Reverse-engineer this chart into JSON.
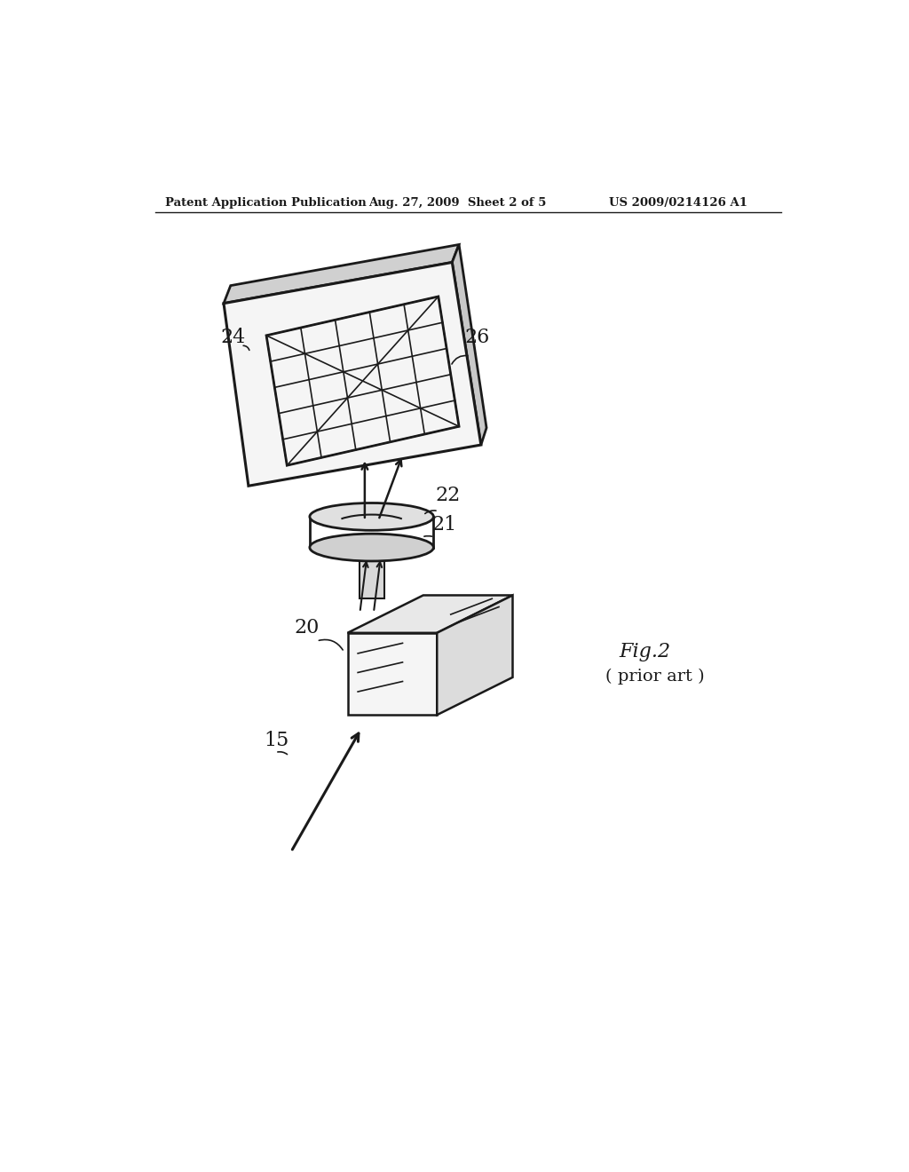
{
  "header_left": "Patent Application Publication",
  "header_mid": "Aug. 27, 2009  Sheet 2 of 5",
  "header_right": "US 2009/0214126 A1",
  "fig_label": "Fig.2",
  "fig_sublabel": "( prior art )",
  "label_24": "24",
  "label_26": "26",
  "label_22": "22",
  "label_21": "21",
  "label_20": "20",
  "label_15": "15",
  "bg_color": "#ffffff",
  "line_color": "#1a1a1a"
}
